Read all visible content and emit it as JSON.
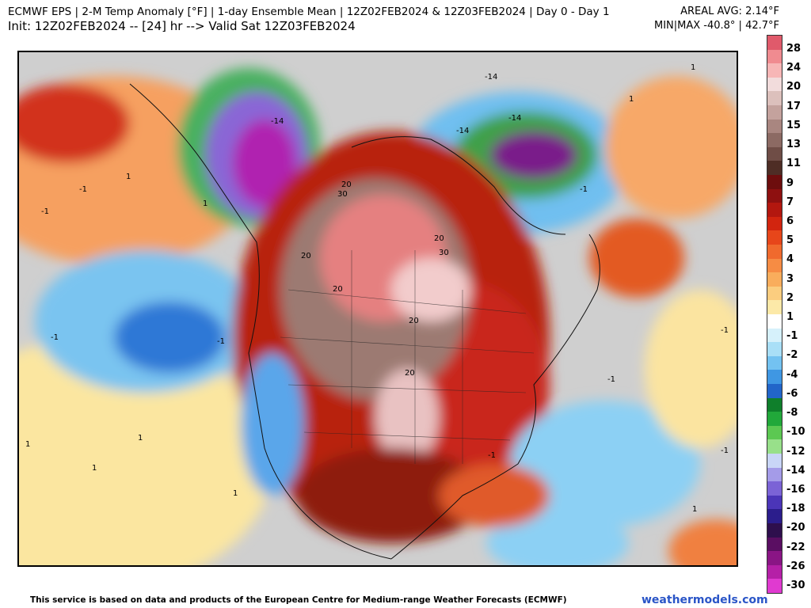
{
  "header": {
    "title_line1": "ECMWF EPS | 2-M Temp Anomaly [°F] | 1-day Ensemble Mean | 12Z02FEB2024 & 12Z03FEB2024 | Day 0 - Day 1",
    "title_line2": "Init: 12Z02FEB2024 -- [24] hr --> Valid Sat 12Z03FEB2024",
    "areal_avg": "AREAL AVG: 2.14°F",
    "min_max": "MIN|MAX -40.8° | 42.7°F"
  },
  "colorbar": {
    "colors": [
      "#e05a6b",
      "#f08b90",
      "#f7b6b6",
      "#f2dcdc",
      "#dcc0bc",
      "#c4a29d",
      "#a98680",
      "#8c6a63",
      "#6f4d46",
      "#4e2d25",
      "#6d0d0d",
      "#8e1010",
      "#b3170f",
      "#d2250f",
      "#e7461a",
      "#f06a2d",
      "#f68c44",
      "#f9ad5c",
      "#fbcd7f",
      "#fce9a8",
      "#ffffff",
      "#d6f1fb",
      "#a9dff7",
      "#73c2f1",
      "#3f97e3",
      "#2265c9",
      "#0f7f2b",
      "#21a83a",
      "#5cc852",
      "#98e08a",
      "#c9d6f7",
      "#a49be8",
      "#7b63d6",
      "#4b35b8",
      "#2b1d8c",
      "#2e0f4d",
      "#5a0e62",
      "#8a1585",
      "#b520a7",
      "#e03ad0"
    ],
    "labels": [
      "28",
      "24",
      "20",
      "17",
      "15",
      "13",
      "11",
      "9",
      "7",
      "6",
      "5",
      "4",
      "3",
      "2",
      "1",
      "-1",
      "-2",
      "-4",
      "-6",
      "-8",
      "-10",
      "-12",
      "-14",
      "-16",
      "-18",
      "-20",
      "-22",
      "-26",
      "-30"
    ]
  },
  "contour_labels": [
    "1",
    "-1",
    "-1",
    "1",
    "-1",
    "-1",
    "1",
    "1",
    "1",
    "1",
    "-14",
    "-14",
    "-14",
    "-14",
    "20",
    "30",
    "20",
    "20",
    "30",
    "20",
    "20",
    "20",
    "-1",
    "-1",
    "-1",
    "1",
    "1",
    "-1",
    "-1",
    "1"
  ],
  "footer": {
    "note": "This service is based on data and products of the European Centre for Medium-range Weather Forecasts (ECMWF)",
    "brand": "weathermodels.com"
  }
}
